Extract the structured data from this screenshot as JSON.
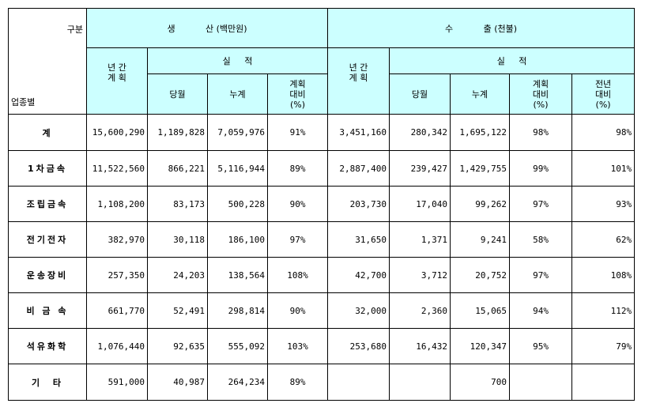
{
  "header": {
    "corner_top": "구분",
    "corner_bottom": "업종별",
    "production": "생           산 (백만원)",
    "export": "수           출 (천불)",
    "annual_plan": "년 간\n계 획",
    "results": "실     적",
    "month": "당월",
    "cumulative": "누계",
    "plan_ratio": "계획\n대비\n(%)",
    "yoy_ratio": "전년\n대비\n(%)"
  },
  "rows": [
    {
      "name": "계",
      "p_plan": "15,600,290",
      "p_month": "1,189,828",
      "p_cum": "7,059,976",
      "p_ratio": "91%",
      "e_plan": "3,451,160",
      "e_month": "280,342",
      "e_cum": "1,695,122",
      "e_ratio": "98%",
      "e_yoy": "98%"
    },
    {
      "name": "1차금속",
      "p_plan": "11,522,560",
      "p_month": "866,221",
      "p_cum": "5,116,944",
      "p_ratio": "89%",
      "e_plan": "2,887,400",
      "e_month": "239,427",
      "e_cum": "1,429,755",
      "e_ratio": "99%",
      "e_yoy": "101%"
    },
    {
      "name": "조립금속",
      "p_plan": "1,108,200",
      "p_month": "83,173",
      "p_cum": "500,228",
      "p_ratio": "90%",
      "e_plan": "203,730",
      "e_month": "17,040",
      "e_cum": "99,262",
      "e_ratio": "97%",
      "e_yoy": "93%"
    },
    {
      "name": "전기전자",
      "p_plan": "382,970",
      "p_month": "30,118",
      "p_cum": "186,100",
      "p_ratio": "97%",
      "e_plan": "31,650",
      "e_month": "1,371",
      "e_cum": "9,241",
      "e_ratio": "58%",
      "e_yoy": "62%"
    },
    {
      "name": "운송장비",
      "p_plan": "257,350",
      "p_month": "24,203",
      "p_cum": "138,564",
      "p_ratio": "108%",
      "e_plan": "42,700",
      "e_month": "3,712",
      "e_cum": "20,752",
      "e_ratio": "97%",
      "e_yoy": "108%"
    },
    {
      "name": "비 금 속",
      "p_plan": "661,770",
      "p_month": "52,491",
      "p_cum": "298,814",
      "p_ratio": "90%",
      "e_plan": "32,000",
      "e_month": "2,360",
      "e_cum": "15,065",
      "e_ratio": "94%",
      "e_yoy": "112%"
    },
    {
      "name": "석유화학",
      "p_plan": "1,076,440",
      "p_month": "92,635",
      "p_cum": "555,092",
      "p_ratio": "103%",
      "e_plan": "253,680",
      "e_month": "16,432",
      "e_cum": "120,347",
      "e_ratio": "95%",
      "e_yoy": "79%"
    },
    {
      "name": "기  타",
      "p_plan": "591,000",
      "p_month": "40,987",
      "p_cum": "264,234",
      "p_ratio": "89%",
      "e_plan": "",
      "e_month": "",
      "e_cum": "700",
      "e_ratio": "",
      "e_yoy": ""
    }
  ]
}
